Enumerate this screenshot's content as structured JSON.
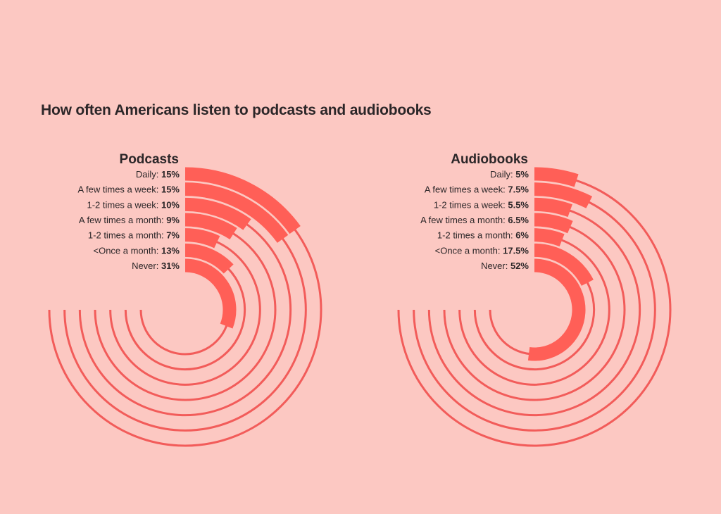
{
  "chart_data": {
    "type": "radial-bar",
    "title": "How often Americans listen to podcasts and audiobooks",
    "scale_note": "bar arc length = value as fraction of full circle (100%)",
    "colors": {
      "background": "#FCC8C2",
      "bar": "#FF5F57",
      "track": "#F25C5A",
      "text": "#2B2628"
    },
    "panels": [
      {
        "title": "Podcasts",
        "categories": [
          "Daily",
          "A few times a week",
          "1-2 times a week",
          "A few times a month",
          "1-2 times a month",
          "<Once a month",
          "Never"
        ],
        "values": [
          15,
          15,
          10,
          9,
          7,
          13,
          31
        ],
        "value_labels": [
          "15%",
          "15%",
          "10%",
          "9%",
          "7%",
          "13%",
          "31%"
        ]
      },
      {
        "title": "Audiobooks",
        "categories": [
          "Daily",
          "A few times a week",
          "1-2 times a week",
          "A few times a month",
          "1-2 times a month",
          "<Once a month",
          "Never"
        ],
        "values": [
          5,
          7.5,
          5.5,
          6.5,
          6,
          17.5,
          52
        ],
        "value_labels": [
          "5%",
          "7.5%",
          "5.5%",
          "6.5%",
          "6%",
          "17.5%",
          "52%"
        ]
      }
    ]
  }
}
